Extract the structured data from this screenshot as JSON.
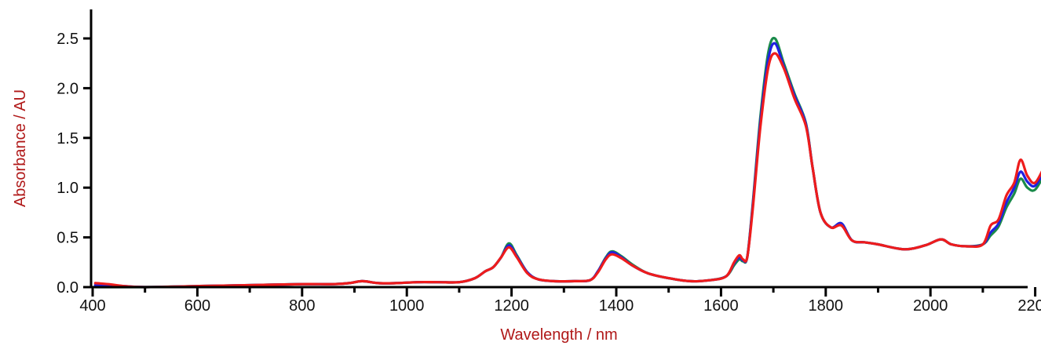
{
  "chart_data": {
    "type": "line",
    "title": "",
    "xlabel": "Wavelength / nm",
    "ylabel": "Absorbance / AU",
    "xlim": [
      400,
      2220
    ],
    "ylim": [
      0,
      2.75
    ],
    "x_ticks": [
      400,
      600,
      800,
      1000,
      1200,
      1400,
      1600,
      1800,
      2000,
      2200
    ],
    "x_tick_labels": [
      "400",
      "600",
      "800",
      "1000",
      "1200",
      "1400",
      "1600",
      "1800",
      "2000",
      "2200"
    ],
    "x_minor_step": 100,
    "y_ticks": [
      0,
      0.5,
      1.0,
      1.5,
      2.0,
      2.5
    ],
    "y_tick_labels": [
      "0.0",
      "0.5",
      "1.0",
      "1.5",
      "2.0",
      "2.5"
    ],
    "grid": false,
    "legend": "none",
    "label_color": "#b01818",
    "series": [
      {
        "color": "#1a8a4a",
        "x": [
          405,
          430,
          460,
          500,
          600,
          700,
          800,
          860,
          890,
          915,
          945,
          980,
          1020,
          1060,
          1100,
          1130,
          1150,
          1165,
          1180,
          1195,
          1210,
          1230,
          1250,
          1280,
          1320,
          1350,
          1365,
          1380,
          1392,
          1410,
          1430,
          1460,
          1500,
          1540,
          1580,
          1610,
          1625,
          1635,
          1642,
          1650,
          1660,
          1675,
          1690,
          1703,
          1720,
          1740,
          1762,
          1775,
          1790,
          1810,
          1830,
          1850,
          1875,
          1900,
          1950,
          1990,
          2020,
          2040,
          2070,
          2100,
          2115,
          2130,
          2145,
          2160,
          2172,
          2185,
          2200,
          2220
        ],
        "y": [
          0.0,
          0.0,
          0.0,
          0.0,
          0.01,
          0.02,
          0.03,
          0.03,
          0.04,
          0.06,
          0.04,
          0.04,
          0.05,
          0.05,
          0.05,
          0.09,
          0.16,
          0.2,
          0.3,
          0.44,
          0.32,
          0.15,
          0.08,
          0.06,
          0.06,
          0.07,
          0.16,
          0.3,
          0.36,
          0.31,
          0.23,
          0.14,
          0.09,
          0.06,
          0.07,
          0.11,
          0.22,
          0.28,
          0.26,
          0.3,
          0.8,
          1.7,
          2.35,
          2.5,
          2.25,
          1.95,
          1.65,
          1.2,
          0.75,
          0.6,
          0.64,
          0.47,
          0.45,
          0.43,
          0.38,
          0.42,
          0.48,
          0.43,
          0.41,
          0.43,
          0.52,
          0.61,
          0.8,
          0.94,
          1.09,
          1.0,
          0.98,
          1.16
        ]
      },
      {
        "color": "#2020e0",
        "x": [
          405,
          430,
          460,
          500,
          600,
          700,
          800,
          860,
          890,
          915,
          945,
          980,
          1020,
          1060,
          1100,
          1130,
          1150,
          1165,
          1180,
          1195,
          1210,
          1230,
          1250,
          1280,
          1320,
          1350,
          1365,
          1380,
          1392,
          1410,
          1430,
          1460,
          1500,
          1540,
          1580,
          1610,
          1625,
          1635,
          1642,
          1650,
          1660,
          1675,
          1690,
          1703,
          1720,
          1740,
          1762,
          1775,
          1790,
          1810,
          1830,
          1850,
          1875,
          1900,
          1950,
          1990,
          2020,
          2040,
          2070,
          2100,
          2115,
          2130,
          2145,
          2160,
          2172,
          2185,
          2200,
          2220
        ],
        "y": [
          0.02,
          0.02,
          0.01,
          0.0,
          0.01,
          0.02,
          0.03,
          0.03,
          0.04,
          0.06,
          0.04,
          0.04,
          0.05,
          0.05,
          0.05,
          0.09,
          0.16,
          0.2,
          0.3,
          0.42,
          0.31,
          0.15,
          0.08,
          0.06,
          0.06,
          0.07,
          0.16,
          0.29,
          0.35,
          0.3,
          0.22,
          0.14,
          0.09,
          0.06,
          0.07,
          0.11,
          0.24,
          0.3,
          0.27,
          0.3,
          0.78,
          1.65,
          2.28,
          2.45,
          2.22,
          1.93,
          1.64,
          1.2,
          0.75,
          0.6,
          0.64,
          0.47,
          0.45,
          0.43,
          0.38,
          0.42,
          0.48,
          0.43,
          0.41,
          0.43,
          0.55,
          0.64,
          0.85,
          1.0,
          1.16,
          1.06,
          1.02,
          1.2
        ]
      },
      {
        "color": "#ee1c1c",
        "x": [
          405,
          430,
          460,
          500,
          600,
          700,
          800,
          860,
          890,
          915,
          945,
          980,
          1020,
          1060,
          1100,
          1130,
          1150,
          1165,
          1180,
          1195,
          1210,
          1230,
          1250,
          1280,
          1320,
          1350,
          1365,
          1380,
          1392,
          1410,
          1430,
          1460,
          1500,
          1540,
          1580,
          1610,
          1625,
          1635,
          1642,
          1650,
          1660,
          1675,
          1690,
          1703,
          1720,
          1740,
          1762,
          1775,
          1790,
          1810,
          1830,
          1850,
          1875,
          1900,
          1950,
          1990,
          2020,
          2040,
          2070,
          2100,
          2115,
          2130,
          2145,
          2160,
          2172,
          2185,
          2200,
          2220
        ],
        "y": [
          0.04,
          0.03,
          0.01,
          0.0,
          0.01,
          0.02,
          0.03,
          0.03,
          0.04,
          0.06,
          0.04,
          0.04,
          0.05,
          0.05,
          0.05,
          0.09,
          0.16,
          0.2,
          0.3,
          0.4,
          0.3,
          0.14,
          0.08,
          0.06,
          0.06,
          0.07,
          0.15,
          0.28,
          0.33,
          0.29,
          0.22,
          0.14,
          0.09,
          0.06,
          0.07,
          0.11,
          0.25,
          0.32,
          0.28,
          0.3,
          0.75,
          1.6,
          2.2,
          2.35,
          2.2,
          1.9,
          1.62,
          1.2,
          0.75,
          0.6,
          0.62,
          0.47,
          0.45,
          0.43,
          0.38,
          0.42,
          0.48,
          0.43,
          0.41,
          0.43,
          0.62,
          0.68,
          0.92,
          1.05,
          1.28,
          1.12,
          1.05,
          1.24
        ]
      }
    ]
  }
}
